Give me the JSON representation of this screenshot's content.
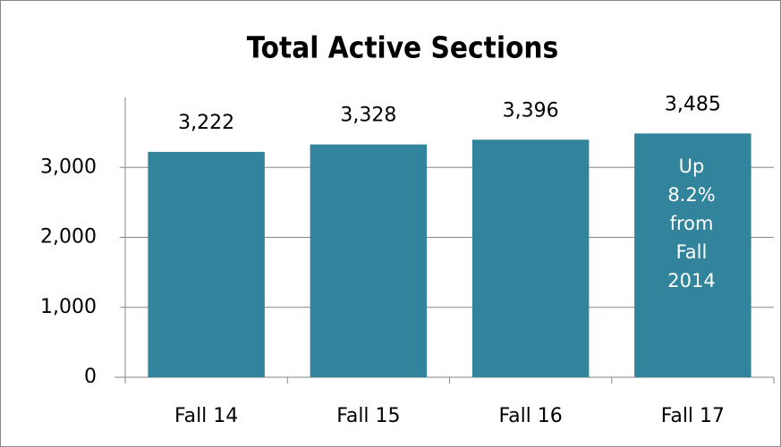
{
  "chart_data": {
    "type": "bar",
    "title": "Total Active Sections",
    "categories": [
      "Fall 14",
      "Fall 15",
      "Fall 16",
      "Fall 17"
    ],
    "values": [
      3222,
      3328,
      3396,
      3485
    ],
    "value_labels": [
      "3,222",
      "3,328",
      "3,396",
      "3,485"
    ],
    "color": "#31849b",
    "ylim": [
      0,
      4000
    ],
    "yticks": [
      0,
      {
        "value": 1000,
        "label": "1,000"
      },
      {
        "value": 2000,
        "label": "2,000"
      },
      {
        "value": 3000,
        "label": "3,000"
      }
    ],
    "grid": true,
    "annotation": "Up 8.2% from Fall 2014"
  }
}
